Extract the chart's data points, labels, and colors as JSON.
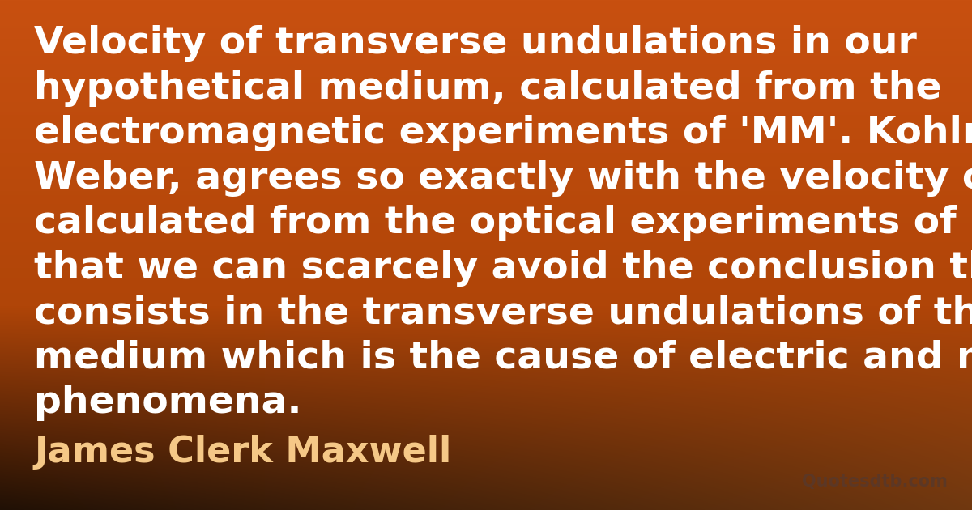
{
  "quote_lines": [
    "Velocity of transverse undulations in our",
    "hypothetical medium, calculated from the",
    "electromagnetic experiments of 'MM'. Kohlrausch and",
    "Weber, agrees so exactly with the velocity of light",
    "calculated from the optical experiments of M. Fizeau,",
    "that we can scarcely avoid the conclusion that light",
    "consists in the transverse undulations of the same",
    "medium which is the cause of electric and magnetic",
    "phenomena."
  ],
  "author": "James Clerk Maxwell",
  "watermark": "Quotesdtb.com",
  "quote_color": "#FFFFFF",
  "author_color": "#F5C887",
  "watermark_color": "#5A3828",
  "quote_fontsize": 34,
  "author_fontsize": 32,
  "watermark_fontsize": 15,
  "fig_width": 12.0,
  "fig_height": 6.3,
  "dpi": 100
}
